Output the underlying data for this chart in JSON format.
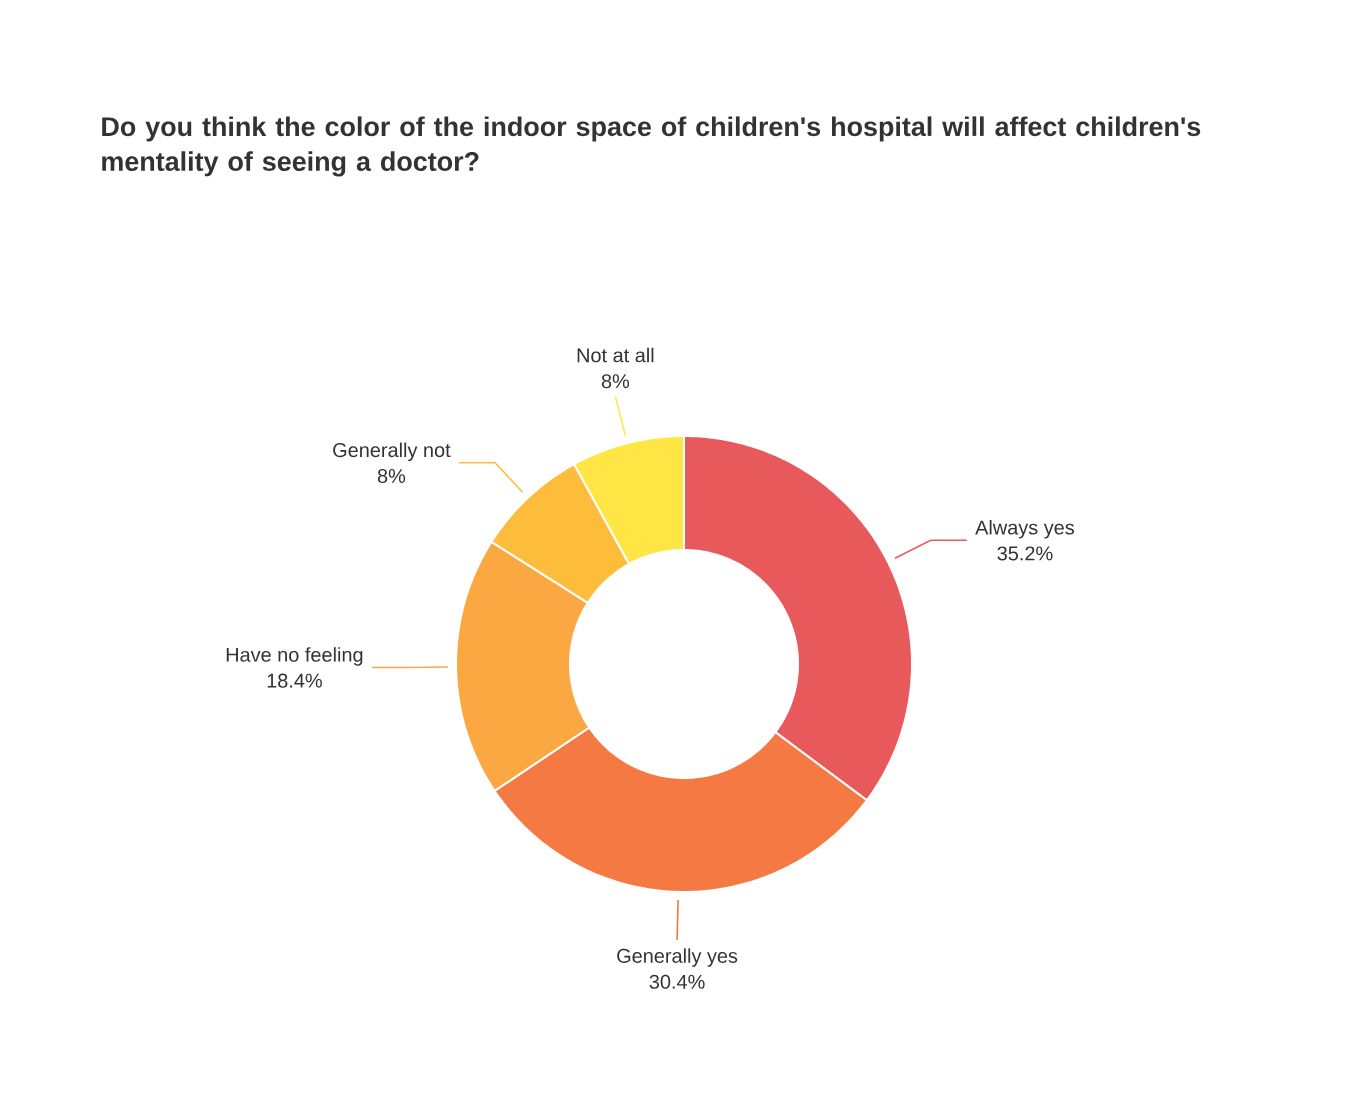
{
  "chart_data": {
    "type": "donut",
    "title": "Do you think the color of the indoor space of children's hospital will affect children's mentality of seeing a doctor?",
    "categories": [
      "Always yes",
      "Generally yes",
      "Have no feeling",
      "Generally not",
      "Not at all"
    ],
    "values": [
      35.2,
      30.4,
      18.4,
      8,
      8
    ],
    "value_labels": [
      "35.2%",
      "30.4%",
      "18.4%",
      "8%",
      "8%"
    ],
    "colors": [
      "#e8595b",
      "#f47943",
      "#fca842",
      "#fdbd3b",
      "#ffe645"
    ]
  }
}
